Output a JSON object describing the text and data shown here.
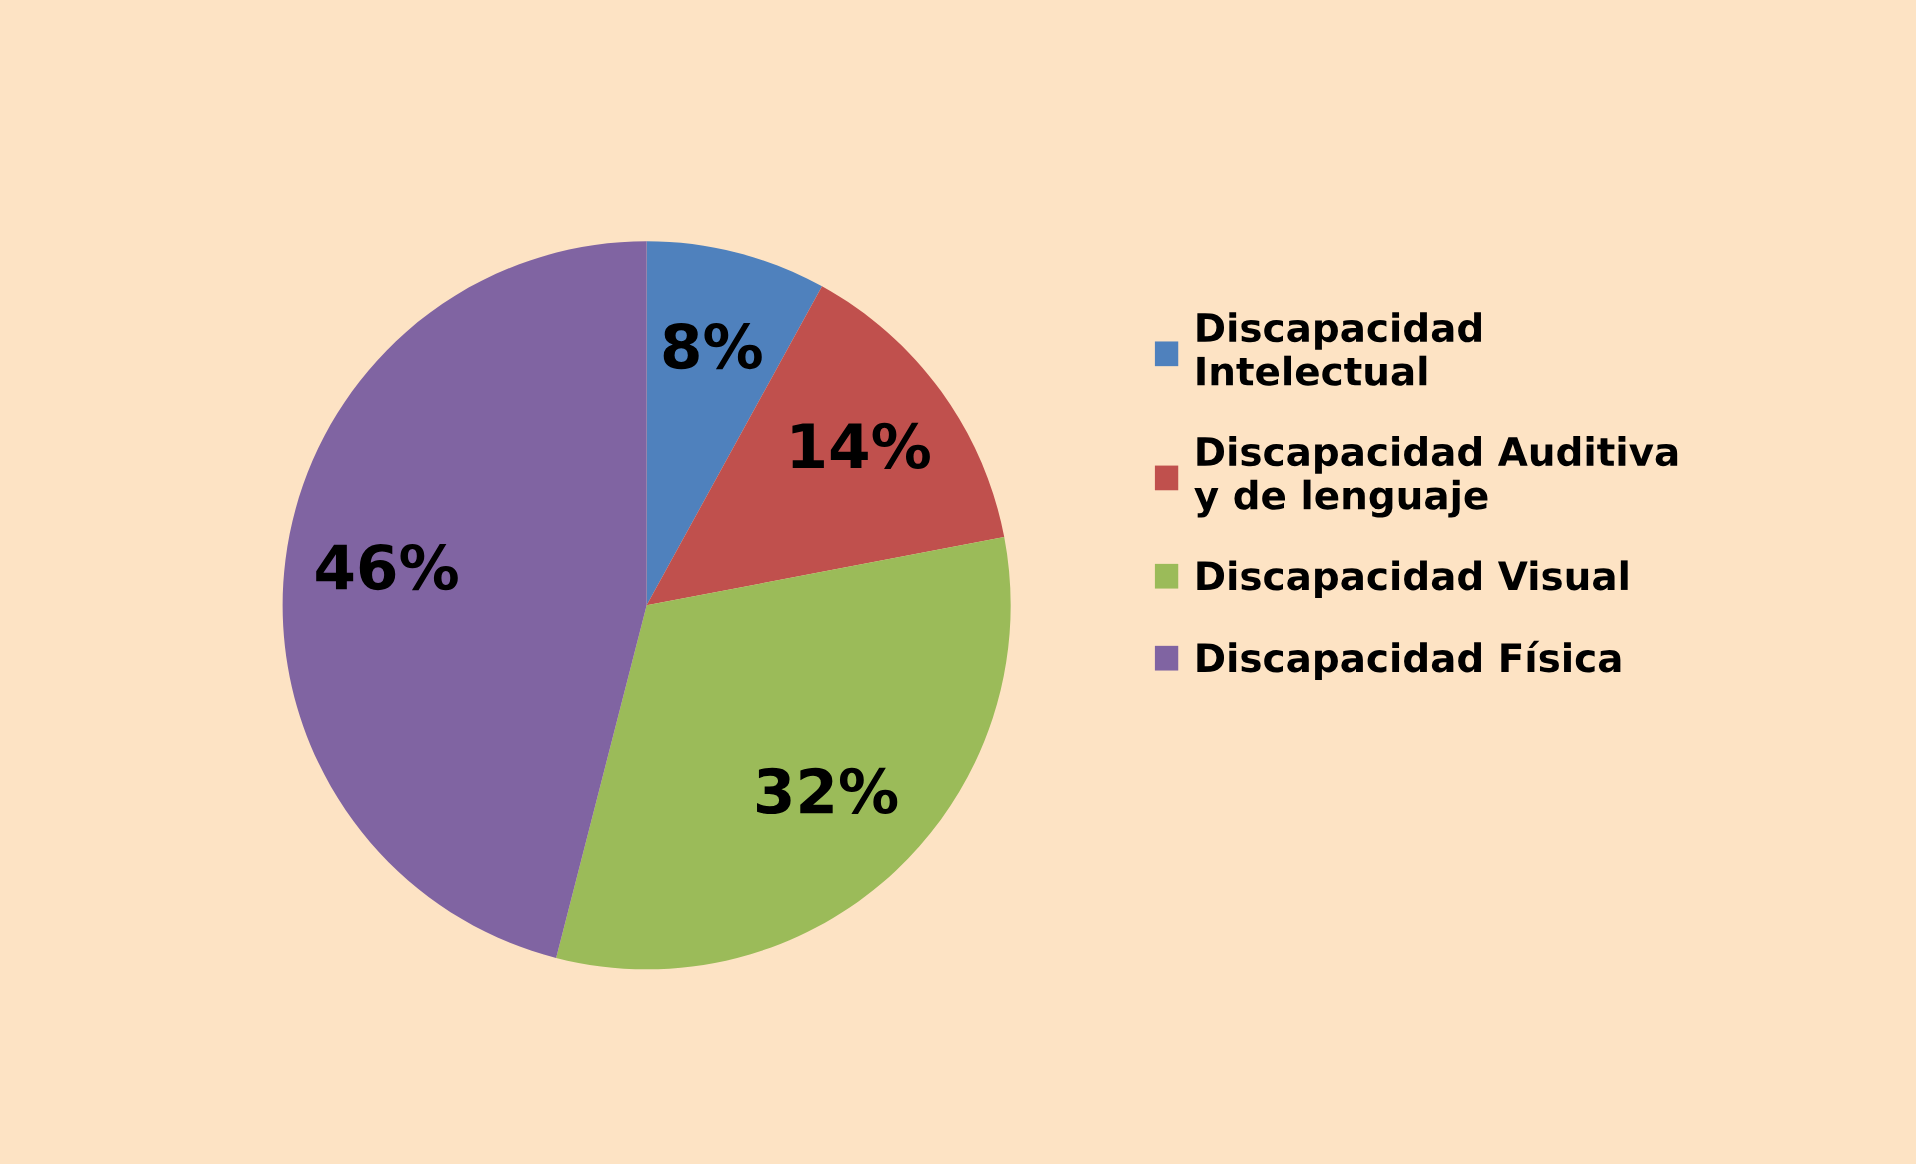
{
  "chart_data": {
    "type": "pie",
    "categories": [
      "Discapacidad\nIntelectual",
      "Discapacidad Auditiva\ny de lenguaje",
      "Discapacidad Visual",
      "Discapacidad Física"
    ],
    "values": [
      8,
      14,
      32,
      46
    ],
    "colors": [
      "#4f81bd",
      "#c0504d",
      "#9bbb59",
      "#8064a2"
    ],
    "value_labels": [
      "8%",
      "14%",
      "32%",
      "46%"
    ],
    "legend": "right"
  }
}
